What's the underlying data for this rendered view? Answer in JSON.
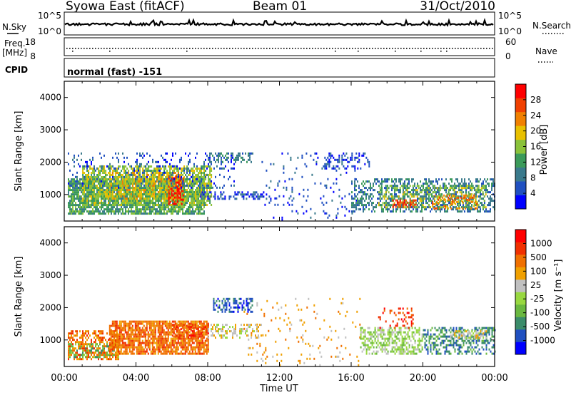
{
  "header": {
    "station": "Syowa East (fitACF)",
    "beam": "Beam 01",
    "date": "31/Oct/2010"
  },
  "aux_panels": {
    "nsky_label": "N.Sky",
    "nsearch_label": "N.Search",
    "exp_ticks": [
      "10^5",
      "10^0"
    ],
    "freq_label_line1": "Freq.",
    "freq_label_line2": "[MHz]",
    "freq_ticks": [
      "18",
      "8"
    ],
    "nave_label": "Nave",
    "nave_ticks": [
      "60",
      "0"
    ],
    "cpid_label": "CPID",
    "cpid_value": "normal (fast) -151"
  },
  "colors": {
    "power_scale": [
      "#0000ff",
      "#2050c0",
      "#3a7a8c",
      "#3b9a5a",
      "#8ac23a",
      "#e8c000",
      "#f08000",
      "#f04000",
      "#ff0000"
    ],
    "velocity_scale": [
      "#0000ff",
      "#2050c0",
      "#3b8c6a",
      "#6ab840",
      "#98d840",
      "#c0c0c0",
      "#f0a000",
      "#f07000",
      "#f03000",
      "#ff0000"
    ]
  },
  "chart_data": [
    {
      "type": "heatmap",
      "title": "Power",
      "xlabel": "Time UT",
      "ylabel": "Slant Range [km]",
      "xticks": [
        "00:00",
        "04:00",
        "08:00",
        "12:00",
        "16:00",
        "20:00",
        "00:00"
      ],
      "xlim_hours": [
        0,
        24
      ],
      "yticks": [
        "4000",
        "3000",
        "2000",
        "1000"
      ],
      "ylim": [
        180,
        4500
      ],
      "colorbar_label": "Power [dB]",
      "colorbar_ticks": [
        "28",
        "24",
        "20",
        "16",
        "12",
        "8",
        "4"
      ],
      "regions": [
        {
          "t0": 0.2,
          "t1": 7.8,
          "r0": 400,
          "r1": 1500,
          "level": 3,
          "density": 0.8
        },
        {
          "t0": 1.0,
          "t1": 8.2,
          "r0": 700,
          "r1": 1900,
          "level": 4,
          "density": 0.6
        },
        {
          "t0": 2.5,
          "t1": 6.5,
          "r0": 900,
          "r1": 1700,
          "level": 5,
          "density": 0.35
        },
        {
          "t0": 5.8,
          "t1": 6.6,
          "r0": 700,
          "r1": 1600,
          "level": 8,
          "density": 0.5
        },
        {
          "t0": 0.2,
          "t1": 9.5,
          "r0": 1200,
          "r1": 2300,
          "level": 1,
          "density": 0.15
        },
        {
          "t0": 8.0,
          "t1": 10.5,
          "r0": 2000,
          "r1": 2300,
          "level": 2,
          "density": 0.4
        },
        {
          "t0": 7.5,
          "t1": 11.5,
          "r0": 900,
          "r1": 1100,
          "level": 1,
          "density": 0.45
        },
        {
          "t0": 11.0,
          "t1": 16.5,
          "r0": 200,
          "r1": 2300,
          "level": 1,
          "density": 0.06
        },
        {
          "t0": 14.5,
          "t1": 17.0,
          "r0": 1800,
          "r1": 2300,
          "level": 1,
          "density": 0.3
        },
        {
          "t0": 16.0,
          "t1": 24.0,
          "r0": 500,
          "r1": 1500,
          "level": 2,
          "density": 0.45
        },
        {
          "t0": 17.5,
          "t1": 23.5,
          "r0": 600,
          "r1": 1300,
          "level": 4,
          "density": 0.35
        },
        {
          "t0": 18.3,
          "t1": 19.6,
          "r0": 600,
          "r1": 850,
          "level": 7,
          "density": 0.6
        },
        {
          "t0": 20.5,
          "t1": 23.0,
          "r0": 600,
          "r1": 1000,
          "level": 6,
          "density": 0.3
        }
      ]
    },
    {
      "type": "heatmap",
      "title": "Velocity",
      "xlabel": "Time UT",
      "ylabel": "Slant Range [km]",
      "xticks": [
        "00:00",
        "04:00",
        "08:00",
        "12:00",
        "16:00",
        "20:00",
        "00:00"
      ],
      "xlim_hours": [
        0,
        24
      ],
      "yticks": [
        "4000",
        "3000",
        "2000",
        "1000"
      ],
      "ylim": [
        180,
        4500
      ],
      "colorbar_label": "Velocity [m s⁻¹]",
      "colorbar_ticks": [
        "1000",
        "500",
        "100",
        "25",
        "-25",
        "-100",
        "-500",
        "-1000"
      ],
      "regions": [
        {
          "t0": 0.2,
          "t1": 3.0,
          "r0": 400,
          "r1": 1300,
          "level": 7,
          "density": 0.55
        },
        {
          "t0": 0.2,
          "t1": 3.0,
          "r0": 450,
          "r1": 900,
          "level": 3,
          "density": 0.35
        },
        {
          "t0": 2.5,
          "t1": 8.0,
          "r0": 600,
          "r1": 1600,
          "level": 7,
          "density": 0.8
        },
        {
          "t0": 6.0,
          "t1": 8.0,
          "r0": 1100,
          "r1": 1500,
          "level": 8,
          "density": 0.4
        },
        {
          "t0": 8.3,
          "t1": 10.5,
          "r0": 1900,
          "r1": 2300,
          "level": 1,
          "density": 0.5
        },
        {
          "t0": 8.0,
          "t1": 11.0,
          "r0": 1100,
          "r1": 1500,
          "level": 5,
          "density": 0.4
        },
        {
          "t0": 10.0,
          "t1": 16.5,
          "r0": 200,
          "r1": 2300,
          "level": 6,
          "density": 0.05
        },
        {
          "t0": 16.5,
          "t1": 20.0,
          "r0": 600,
          "r1": 1400,
          "level": 4,
          "density": 0.55
        },
        {
          "t0": 17.5,
          "t1": 19.5,
          "r0": 1400,
          "r1": 2000,
          "level": 8,
          "density": 0.15
        },
        {
          "t0": 20.0,
          "t1": 24.0,
          "r0": 600,
          "r1": 1400,
          "level": 2,
          "density": 0.45
        },
        {
          "t0": 21.5,
          "t1": 23.5,
          "r0": 1050,
          "r1": 1300,
          "level": 5,
          "density": 0.55
        }
      ]
    }
  ]
}
